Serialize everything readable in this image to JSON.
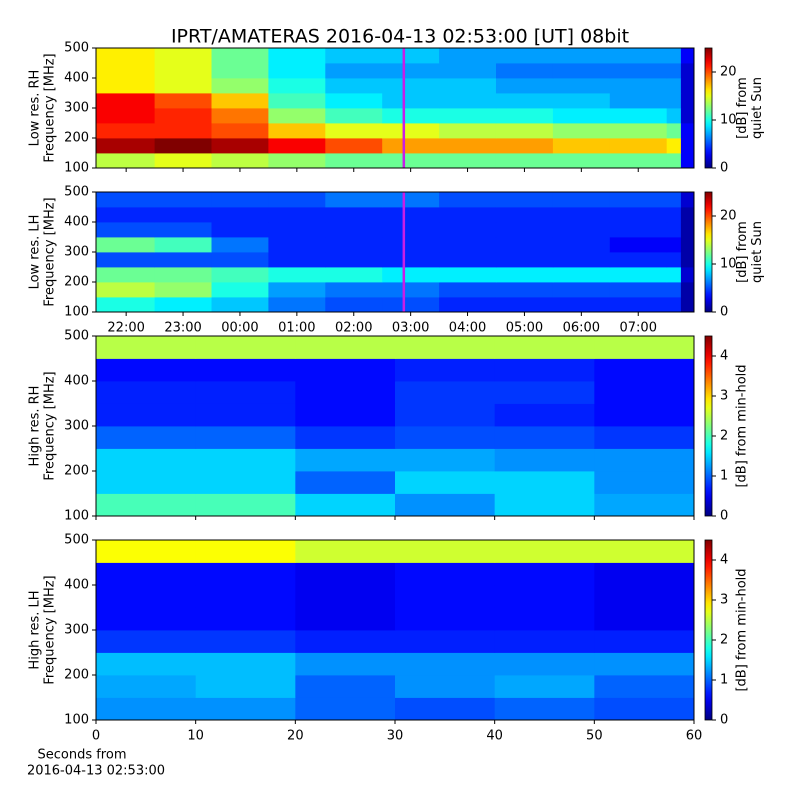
{
  "title": "IPRT/AMATERAS 2016-04-13 02:53:00 [UT]   08bit",
  "chart_data": [
    {
      "type": "heatmap",
      "colormap": "jet",
      "ylabel": [
        "Low res. RH",
        "Frequency [MHz]"
      ],
      "xlim": [
        21.47,
        31.98
      ],
      "xticks": [
        22,
        23,
        24,
        25,
        26,
        27,
        28,
        29,
        30,
        31
      ],
      "xtick_labels": false,
      "ylim": [
        100,
        500
      ],
      "yticks": [
        100,
        200,
        300,
        400,
        500
      ],
      "xbins": [
        21.47,
        22.5,
        23.5,
        24.5,
        25.5,
        26.5,
        27.5,
        28.5,
        29.5,
        30.5,
        31.5,
        31.75,
        31.98
      ],
      "ybins": [
        100,
        150,
        200,
        250,
        300,
        350,
        400,
        450,
        500
      ],
      "z": [
        [
          14,
          15,
          14,
          13,
          12,
          12,
          12,
          12,
          12,
          12,
          12,
          3
        ],
        [
          24,
          25,
          24,
          22,
          20,
          18,
          18,
          18,
          17,
          17,
          16,
          3
        ],
        [
          21,
          21,
          20,
          17,
          15,
          15,
          14,
          14,
          13,
          13,
          12,
          3
        ],
        [
          22,
          21,
          19,
          13,
          11,
          10,
          10,
          10,
          9,
          9,
          8,
          2
        ],
        [
          22,
          20,
          17,
          11,
          9,
          8,
          8,
          8,
          8,
          7,
          7,
          2
        ],
        [
          16,
          15,
          13,
          10,
          8,
          8,
          8,
          7,
          7,
          7,
          7,
          2
        ],
        [
          16,
          15,
          12,
          9,
          7,
          7,
          7,
          6,
          6,
          6,
          6,
          2
        ],
        [
          16,
          15,
          12,
          9,
          8,
          8,
          7,
          7,
          7,
          7,
          7,
          3
        ]
      ],
      "cursor": 26.88,
      "cursor_color": "#c81ee6",
      "clim": [
        0,
        25
      ],
      "cticks": [
        0,
        10,
        20
      ],
      "clabel": [
        "[dB] from",
        "quiet Sun"
      ]
    },
    {
      "type": "heatmap",
      "colormap": "jet",
      "ylabel": [
        "Low res. LH",
        "Frequency [MHz]"
      ],
      "xlim": [
        21.47,
        31.98
      ],
      "xticks": [
        {
          "value": 22,
          "label": "22:00"
        },
        {
          "value": 23,
          "label": "23:00"
        },
        {
          "value": 24,
          "label": "00:00"
        },
        {
          "value": 25,
          "label": "01:00"
        },
        {
          "value": 26,
          "label": "02:00"
        },
        {
          "value": 27,
          "label": "03:00"
        },
        {
          "value": 28,
          "label": "04:00"
        },
        {
          "value": 29,
          "label": "05:00"
        },
        {
          "value": 30,
          "label": "06:00"
        },
        {
          "value": 31,
          "label": "07:00"
        }
      ],
      "xtick_labels": true,
      "ylim": [
        100,
        500
      ],
      "yticks": [
        100,
        200,
        300,
        400,
        500
      ],
      "xbins": [
        21.47,
        22.5,
        23.5,
        24.5,
        25.5,
        26.5,
        27.5,
        28.5,
        29.5,
        30.5,
        31.5,
        31.75,
        31.98
      ],
      "ybins": [
        100,
        150,
        200,
        250,
        300,
        350,
        400,
        450,
        500
      ],
      "z": [
        [
          10,
          9,
          8,
          6,
          5,
          5,
          4,
          4,
          4,
          4,
          4,
          1
        ],
        [
          14,
          13,
          10,
          7,
          6,
          6,
          5,
          5,
          5,
          5,
          5,
          1
        ],
        [
          12,
          12,
          11,
          10,
          10,
          9,
          9,
          9,
          9,
          9,
          9,
          2
        ],
        [
          5,
          5,
          5,
          4,
          4,
          4,
          4,
          4,
          4,
          4,
          4,
          1
        ],
        [
          12,
          11,
          6,
          4,
          4,
          4,
          4,
          4,
          4,
          3,
          3,
          1
        ],
        [
          5,
          5,
          4,
          4,
          4,
          4,
          4,
          4,
          4,
          4,
          4,
          1
        ],
        [
          4,
          4,
          4,
          4,
          4,
          4,
          4,
          4,
          4,
          4,
          4,
          1
        ],
        [
          5,
          5,
          5,
          5,
          6,
          6,
          5,
          5,
          5,
          5,
          5,
          2
        ]
      ],
      "cursor": 26.88,
      "cursor_color": "#c81ee6",
      "clim": [
        0,
        25
      ],
      "cticks": [
        0,
        10,
        20
      ],
      "clabel": [
        "[dB] from",
        "quiet Sun"
      ]
    },
    {
      "type": "heatmap",
      "colormap": "jet",
      "ylabel": [
        "High res. RH",
        "Frequency [MHz]"
      ],
      "xlim": [
        0,
        60
      ],
      "xticks": [
        0,
        10,
        20,
        30,
        40,
        50,
        60
      ],
      "xtick_labels": false,
      "ylim": [
        100,
        500
      ],
      "yticks": [
        100,
        200,
        300,
        400,
        500
      ],
      "xbins": [
        0,
        10,
        20,
        30,
        40,
        50,
        60
      ],
      "ybins": [
        100,
        150,
        200,
        250,
        300,
        350,
        400,
        450,
        500
      ],
      "z": [
        [
          2,
          2,
          1.5,
          1.2,
          1.5,
          1.3
        ],
        [
          1.5,
          1.5,
          1,
          1.5,
          1.5,
          1.2
        ],
        [
          1.5,
          1.5,
          1.3,
          1.3,
          1.2,
          1.2
        ],
        [
          1,
          1,
          0.8,
          0.9,
          0.9,
          0.8
        ],
        [
          0.7,
          0.7,
          0.6,
          0.8,
          0.7,
          0.6
        ],
        [
          0.7,
          0.7,
          0.6,
          0.8,
          0.8,
          0.6
        ],
        [
          0.6,
          0.6,
          0.6,
          0.7,
          0.7,
          0.6
        ],
        [
          2.5,
          2.5,
          2.5,
          2.5,
          2.5,
          2.5
        ]
      ],
      "clim": [
        0,
        4.5
      ],
      "cticks": [
        0,
        1,
        2,
        3,
        4
      ],
      "clabel": [
        "[dB] from min-hold"
      ]
    },
    {
      "type": "heatmap",
      "colormap": "jet",
      "ylabel": [
        "High res. LH",
        "Frequency [MHz]"
      ],
      "xlim": [
        0,
        60
      ],
      "xticks": [
        0,
        10,
        20,
        30,
        40,
        50,
        60
      ],
      "xtick_labels": true,
      "xlabel": [
        "Seconds from",
        "2016-04-13 02:53:00"
      ],
      "ylim": [
        100,
        500
      ],
      "yticks": [
        100,
        200,
        300,
        400,
        500
      ],
      "xbins": [
        0,
        10,
        20,
        30,
        40,
        50,
        60
      ],
      "ybins": [
        100,
        150,
        200,
        250,
        300,
        350,
        400,
        450,
        500
      ],
      "z": [
        [
          1.2,
          1.2,
          1,
          0.9,
          1,
          0.9
        ],
        [
          1.3,
          1.4,
          1,
          1.2,
          1.3,
          1
        ],
        [
          1.4,
          1.4,
          1.2,
          1.2,
          1.2,
          1.2
        ],
        [
          0.8,
          0.8,
          0.7,
          0.7,
          0.7,
          0.7
        ],
        [
          0.6,
          0.6,
          0.5,
          0.6,
          0.6,
          0.5
        ],
        [
          0.6,
          0.6,
          0.5,
          0.6,
          0.6,
          0.5
        ],
        [
          0.6,
          0.6,
          0.5,
          0.6,
          0.6,
          0.5
        ],
        [
          2.8,
          2.8,
          2.6,
          2.6,
          2.6,
          2.6
        ]
      ],
      "clim": [
        0,
        4.5
      ],
      "cticks": [
        0,
        1,
        2,
        3,
        4
      ],
      "clabel": [
        "[dB] from min-hold"
      ]
    }
  ]
}
